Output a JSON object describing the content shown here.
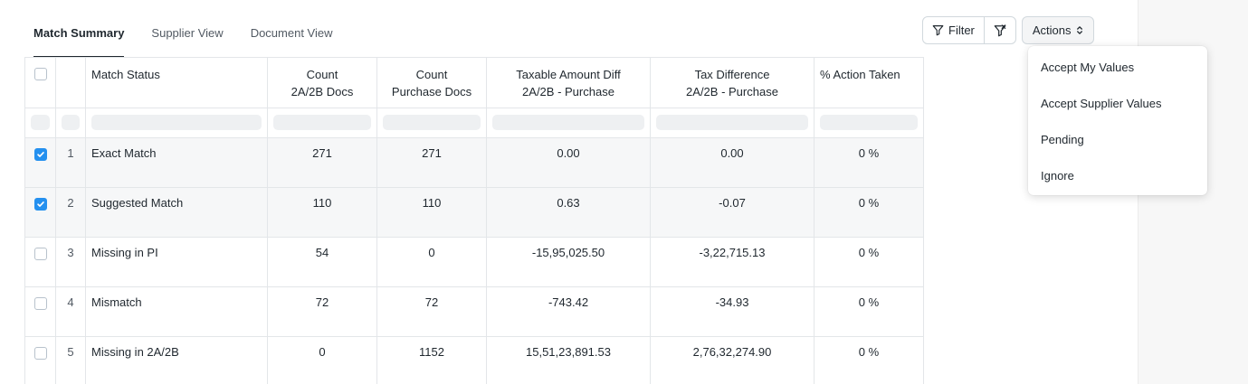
{
  "tabs": [
    {
      "label": "Match Summary",
      "active": true
    },
    {
      "label": "Supplier View",
      "active": false
    },
    {
      "label": "Document View",
      "active": false
    }
  ],
  "toolbar": {
    "filter_label": "Filter",
    "filter_icon": "funnel-icon",
    "clear_filter_icon": "funnel-x-icon",
    "actions_label": "Actions",
    "actions_icon": "chevron-up-down-icon"
  },
  "actions_menu": {
    "items": [
      "Accept My Values",
      "Accept Supplier Values",
      "Pending",
      "Ignore"
    ]
  },
  "table": {
    "headers": {
      "match_status": "Match Status",
      "count_2a2b_line1": "Count",
      "count_2a2b_line2": "2A/2B Docs",
      "count_purchase_line1": "Count",
      "count_purchase_line2": "Purchase Docs",
      "taxable_line1": "Taxable Amount Diff",
      "taxable_line2": "2A/2B - Purchase",
      "tax_line1": "Tax Difference",
      "tax_line2": "2A/2B - Purchase",
      "action_taken": "% Action Taken"
    },
    "rows": [
      {
        "checked": true,
        "idx": "1",
        "status": "Exact Match",
        "count_2a2b": "271",
        "count_purchase": "271",
        "taxable_diff": "0.00",
        "tax_diff": "0.00",
        "action_taken": "0 %"
      },
      {
        "checked": true,
        "idx": "2",
        "status": "Suggested Match",
        "count_2a2b": "110",
        "count_purchase": "110",
        "taxable_diff": "0.63",
        "tax_diff": "-0.07",
        "action_taken": "0 %"
      },
      {
        "checked": false,
        "idx": "3",
        "status": "Missing in PI",
        "count_2a2b": "54",
        "count_purchase": "0",
        "taxable_diff": "-15,95,025.50",
        "tax_diff": "-3,22,715.13",
        "action_taken": "0 %"
      },
      {
        "checked": false,
        "idx": "4",
        "status": "Mismatch",
        "count_2a2b": "72",
        "count_purchase": "72",
        "taxable_diff": "-743.42",
        "tax_diff": "-34.93",
        "action_taken": "0 %"
      },
      {
        "checked": false,
        "idx": "5",
        "status": "Missing in 2A/2B",
        "count_2a2b": "0",
        "count_purchase": "1152",
        "taxable_diff": "15,51,23,891.53",
        "tax_diff": "2,76,32,274.90",
        "action_taken": "0 %"
      }
    ]
  },
  "colors": {
    "accent": "#2490ef",
    "text": "#1f272e",
    "border": "#e3e6e9"
  }
}
